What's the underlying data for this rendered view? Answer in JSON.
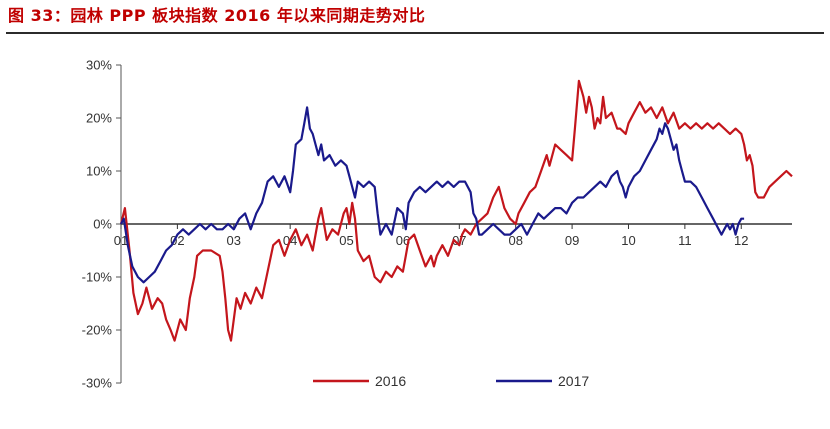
{
  "header": {
    "title": "图 33：园林 PPP 板块指数 2016 年以来同期走势对比"
  },
  "colors": {
    "s2016": "#c4161c",
    "s2017": "#1a1a8c",
    "axis": "#555555"
  },
  "chart_data": {
    "type": "line",
    "title": "图 33：园林 PPP 板块指数 2016 年以来同期走势对比",
    "xlabel": "",
    "ylabel": "",
    "x_tick_labels": [
      "01",
      "02",
      "03",
      "04",
      "05",
      "06",
      "07",
      "08",
      "09",
      "10",
      "11",
      "12"
    ],
    "y_tick_labels": [
      "30%",
      "20%",
      "10%",
      "0%",
      "-10%",
      "-20%",
      "-30%"
    ],
    "xlim": [
      1,
      12.9
    ],
    "ylim": [
      -30,
      30
    ],
    "grid": false,
    "legend_position": "bottom",
    "series": [
      {
        "name": "2016",
        "color": "#c4161c",
        "points": [
          [
            1.0,
            0
          ],
          [
            1.07,
            3
          ],
          [
            1.15,
            -5
          ],
          [
            1.22,
            -13
          ],
          [
            1.3,
            -17
          ],
          [
            1.38,
            -15
          ],
          [
            1.45,
            -12
          ],
          [
            1.55,
            -16
          ],
          [
            1.65,
            -14
          ],
          [
            1.73,
            -15
          ],
          [
            1.8,
            -18
          ],
          [
            1.88,
            -20
          ],
          [
            1.95,
            -22
          ],
          [
            2.05,
            -18
          ],
          [
            2.15,
            -20
          ],
          [
            2.22,
            -14
          ],
          [
            2.3,
            -10
          ],
          [
            2.35,
            -6
          ],
          [
            2.45,
            -5
          ],
          [
            2.6,
            -5
          ],
          [
            2.75,
            -6
          ],
          [
            2.8,
            -9
          ],
          [
            2.85,
            -14
          ],
          [
            2.9,
            -20
          ],
          [
            2.95,
            -22
          ],
          [
            3.0,
            -18
          ],
          [
            3.05,
            -14
          ],
          [
            3.12,
            -16
          ],
          [
            3.2,
            -13
          ],
          [
            3.3,
            -15
          ],
          [
            3.4,
            -12
          ],
          [
            3.5,
            -14
          ],
          [
            3.6,
            -9
          ],
          [
            3.7,
            -4
          ],
          [
            3.8,
            -3
          ],
          [
            3.9,
            -6
          ],
          [
            4.0,
            -3
          ],
          [
            4.1,
            -1
          ],
          [
            4.2,
            -4
          ],
          [
            4.3,
            -2
          ],
          [
            4.4,
            -5
          ],
          [
            4.5,
            1
          ],
          [
            4.55,
            3
          ],
          [
            4.65,
            -3
          ],
          [
            4.75,
            -1
          ],
          [
            4.85,
            -2
          ],
          [
            4.95,
            2
          ],
          [
            5.0,
            3
          ],
          [
            5.05,
            0
          ],
          [
            5.1,
            4
          ],
          [
            5.15,
            1
          ],
          [
            5.2,
            -5
          ],
          [
            5.3,
            -7
          ],
          [
            5.4,
            -6
          ],
          [
            5.5,
            -10
          ],
          [
            5.6,
            -11
          ],
          [
            5.7,
            -9
          ],
          [
            5.8,
            -10
          ],
          [
            5.9,
            -8
          ],
          [
            6.0,
            -9
          ],
          [
            6.05,
            -6
          ],
          [
            6.1,
            -3
          ],
          [
            6.2,
            -2
          ],
          [
            6.3,
            -5
          ],
          [
            6.4,
            -8
          ],
          [
            6.5,
            -6
          ],
          [
            6.55,
            -8
          ],
          [
            6.6,
            -6
          ],
          [
            6.7,
            -4
          ],
          [
            6.8,
            -6
          ],
          [
            6.9,
            -3
          ],
          [
            7.0,
            -4
          ],
          [
            7.05,
            -2
          ],
          [
            7.1,
            -1
          ],
          [
            7.2,
            -2
          ],
          [
            7.3,
            0
          ],
          [
            7.4,
            1
          ],
          [
            7.5,
            2
          ],
          [
            7.6,
            5
          ],
          [
            7.7,
            7
          ],
          [
            7.75,
            5
          ],
          [
            7.8,
            3
          ],
          [
            7.9,
            1
          ],
          [
            8.0,
            0
          ],
          [
            8.05,
            2
          ],
          [
            8.15,
            4
          ],
          [
            8.25,
            6
          ],
          [
            8.35,
            7
          ],
          [
            8.45,
            10
          ],
          [
            8.55,
            13
          ],
          [
            8.6,
            11
          ],
          [
            8.7,
            15
          ],
          [
            8.8,
            14
          ],
          [
            8.9,
            13
          ],
          [
            9.0,
            12
          ],
          [
            9.05,
            18
          ],
          [
            9.12,
            27
          ],
          [
            9.2,
            24
          ],
          [
            9.25,
            21
          ],
          [
            9.3,
            24
          ],
          [
            9.35,
            22
          ],
          [
            9.4,
            18
          ],
          [
            9.45,
            20
          ],
          [
            9.5,
            19
          ],
          [
            9.55,
            24
          ],
          [
            9.6,
            20
          ],
          [
            9.7,
            21
          ],
          [
            9.8,
            18
          ],
          [
            9.85,
            18
          ],
          [
            9.95,
            17
          ],
          [
            10.0,
            19
          ],
          [
            10.1,
            21
          ],
          [
            10.2,
            23
          ],
          [
            10.3,
            21
          ],
          [
            10.4,
            22
          ],
          [
            10.5,
            20
          ],
          [
            10.6,
            22
          ],
          [
            10.7,
            19
          ],
          [
            10.8,
            21
          ],
          [
            10.9,
            18
          ],
          [
            11.0,
            19
          ],
          [
            11.1,
            18
          ],
          [
            11.2,
            19
          ],
          [
            11.3,
            18
          ],
          [
            11.4,
            19
          ],
          [
            11.5,
            18
          ],
          [
            11.6,
            19
          ],
          [
            11.7,
            18
          ],
          [
            11.8,
            17
          ],
          [
            11.9,
            18
          ],
          [
            12.0,
            17
          ],
          [
            12.05,
            15
          ],
          [
            12.1,
            12
          ],
          [
            12.15,
            13
          ],
          [
            12.2,
            11
          ],
          [
            12.25,
            6
          ],
          [
            12.3,
            5
          ],
          [
            12.4,
            5
          ],
          [
            12.5,
            7
          ],
          [
            12.6,
            8
          ],
          [
            12.7,
            9
          ],
          [
            12.8,
            10
          ],
          [
            12.9,
            9
          ]
        ]
      },
      {
        "name": "2017",
        "color": "#1a1a8c",
        "points": [
          [
            1.0,
            0
          ],
          [
            1.05,
            1
          ],
          [
            1.12,
            -4
          ],
          [
            1.2,
            -8
          ],
          [
            1.3,
            -10
          ],
          [
            1.4,
            -11
          ],
          [
            1.5,
            -10
          ],
          [
            1.6,
            -9
          ],
          [
            1.7,
            -7
          ],
          [
            1.8,
            -5
          ],
          [
            1.9,
            -4
          ],
          [
            2.0,
            -2
          ],
          [
            2.1,
            -1
          ],
          [
            2.2,
            -2
          ],
          [
            2.3,
            -1
          ],
          [
            2.4,
            0
          ],
          [
            2.5,
            -1
          ],
          [
            2.6,
            0
          ],
          [
            2.7,
            -1
          ],
          [
            2.8,
            -1
          ],
          [
            2.9,
            0
          ],
          [
            3.0,
            -1
          ],
          [
            3.1,
            1
          ],
          [
            3.2,
            2
          ],
          [
            3.3,
            -1
          ],
          [
            3.4,
            2
          ],
          [
            3.5,
            4
          ],
          [
            3.6,
            8
          ],
          [
            3.7,
            9
          ],
          [
            3.8,
            7
          ],
          [
            3.9,
            9
          ],
          [
            4.0,
            6
          ],
          [
            4.05,
            10
          ],
          [
            4.1,
            15
          ],
          [
            4.2,
            16
          ],
          [
            4.25,
            19
          ],
          [
            4.3,
            22
          ],
          [
            4.35,
            18
          ],
          [
            4.4,
            17
          ],
          [
            4.5,
            13
          ],
          [
            4.55,
            15
          ],
          [
            4.6,
            12
          ],
          [
            4.7,
            13
          ],
          [
            4.8,
            11
          ],
          [
            4.9,
            12
          ],
          [
            5.0,
            11
          ],
          [
            5.05,
            9
          ],
          [
            5.1,
            7
          ],
          [
            5.15,
            5
          ],
          [
            5.2,
            8
          ],
          [
            5.3,
            7
          ],
          [
            5.4,
            8
          ],
          [
            5.5,
            7
          ],
          [
            5.55,
            2
          ],
          [
            5.6,
            -2
          ],
          [
            5.7,
            0
          ],
          [
            5.8,
            -2
          ],
          [
            5.9,
            3
          ],
          [
            6.0,
            2
          ],
          [
            6.05,
            -1
          ],
          [
            6.1,
            4
          ],
          [
            6.2,
            6
          ],
          [
            6.3,
            7
          ],
          [
            6.4,
            6
          ],
          [
            6.5,
            7
          ],
          [
            6.6,
            8
          ],
          [
            6.7,
            7
          ],
          [
            6.8,
            8
          ],
          [
            6.9,
            7
          ],
          [
            7.0,
            8
          ],
          [
            7.1,
            8
          ],
          [
            7.2,
            6
          ],
          [
            7.25,
            2
          ],
          [
            7.3,
            1
          ],
          [
            7.35,
            -2
          ],
          [
            7.4,
            -2
          ],
          [
            7.5,
            -1
          ],
          [
            7.6,
            0
          ],
          [
            7.7,
            -1
          ],
          [
            7.8,
            -2
          ],
          [
            7.9,
            -2
          ],
          [
            8.0,
            -1
          ],
          [
            8.1,
            0
          ],
          [
            8.2,
            -2
          ],
          [
            8.3,
            0
          ],
          [
            8.4,
            2
          ],
          [
            8.5,
            1
          ],
          [
            8.6,
            2
          ],
          [
            8.7,
            3
          ],
          [
            8.8,
            3
          ],
          [
            8.9,
            2
          ],
          [
            9.0,
            4
          ],
          [
            9.1,
            5
          ],
          [
            9.2,
            5
          ],
          [
            9.3,
            6
          ],
          [
            9.4,
            7
          ],
          [
            9.5,
            8
          ],
          [
            9.6,
            7
          ],
          [
            9.7,
            9
          ],
          [
            9.8,
            10
          ],
          [
            9.85,
            8
          ],
          [
            9.9,
            7
          ],
          [
            9.95,
            5
          ],
          [
            10.0,
            7
          ],
          [
            10.1,
            9
          ],
          [
            10.2,
            10
          ],
          [
            10.3,
            12
          ],
          [
            10.4,
            14
          ],
          [
            10.5,
            16
          ],
          [
            10.55,
            18
          ],
          [
            10.6,
            17
          ],
          [
            10.65,
            19
          ],
          [
            10.7,
            18
          ],
          [
            10.75,
            16
          ],
          [
            10.8,
            14
          ],
          [
            10.85,
            15
          ],
          [
            10.9,
            12
          ],
          [
            10.95,
            10
          ],
          [
            11.0,
            8
          ],
          [
            11.1,
            8
          ],
          [
            11.2,
            7
          ],
          [
            11.3,
            5
          ],
          [
            11.4,
            3
          ],
          [
            11.5,
            1
          ],
          [
            11.55,
            0
          ],
          [
            11.6,
            -1
          ],
          [
            11.65,
            -2
          ],
          [
            11.7,
            -1
          ],
          [
            11.75,
            0
          ],
          [
            11.8,
            -1
          ],
          [
            11.85,
            0
          ],
          [
            11.9,
            -2
          ],
          [
            11.95,
            0
          ],
          [
            12.0,
            1
          ],
          [
            12.05,
            1
          ]
        ]
      }
    ]
  }
}
